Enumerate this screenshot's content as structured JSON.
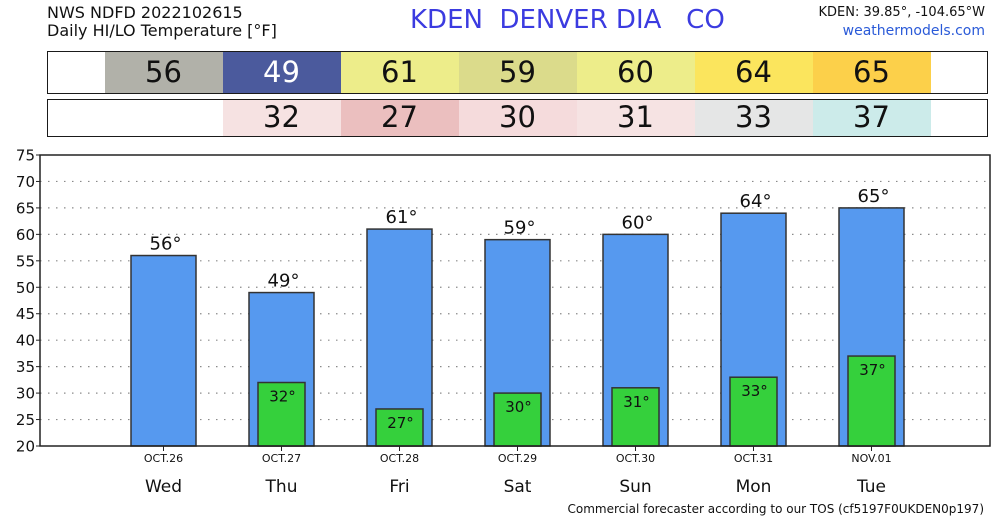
{
  "header": {
    "source": "NWS NDFD 2022102615",
    "product": "Daily HI/LO Temperature [°F]",
    "station_title": "KDEN  DENVER DIA   CO",
    "coords": "KDEN: 39.85°, -104.65°W",
    "site": "weathermodels.com"
  },
  "colors": {
    "title": "#3b3be0",
    "site": "#2a5ad8",
    "high_bar": "#5699ef",
    "low_bar": "#35d03c",
    "bar_outline": "#333333",
    "high_boxes": [
      "#b1b1a9",
      "#4b5a9d",
      "#eded8a",
      "#dbdb8b",
      "#eded8a",
      "#fbe55d",
      "#fcd04a"
    ],
    "high_box_text": [
      "#111111",
      "#ffffff",
      "#111111",
      "#111111",
      "#111111",
      "#111111",
      "#111111"
    ],
    "low_boxes": [
      "#ffffff",
      "#f6e2e2",
      "#ebbfbf",
      "#f5dbdc",
      "#f6e3e3",
      "#e5e6e6",
      "#ccebea"
    ]
  },
  "chart_data": {
    "type": "bar",
    "categories": [
      "Wed",
      "Thu",
      "Fri",
      "Sat",
      "Sun",
      "Mon",
      "Tue"
    ],
    "dates": [
      "OCT.26",
      "OCT.27",
      "OCT.28",
      "OCT.29",
      "OCT.30",
      "OCT.31",
      "NOV.01"
    ],
    "high": [
      56,
      49,
      61,
      59,
      60,
      64,
      65
    ],
    "low": [
      null,
      32,
      27,
      30,
      31,
      33,
      37
    ],
    "value_suffix": "°",
    "ylim": [
      20,
      75
    ],
    "yticks": [
      20,
      25,
      30,
      35,
      40,
      45,
      50,
      55,
      60,
      65,
      70,
      75
    ],
    "grid": true,
    "xlabel": "",
    "ylabel": ""
  },
  "footer": "Commercial forecaster according to our TOS (cf5197F0UKDEN0p197)"
}
